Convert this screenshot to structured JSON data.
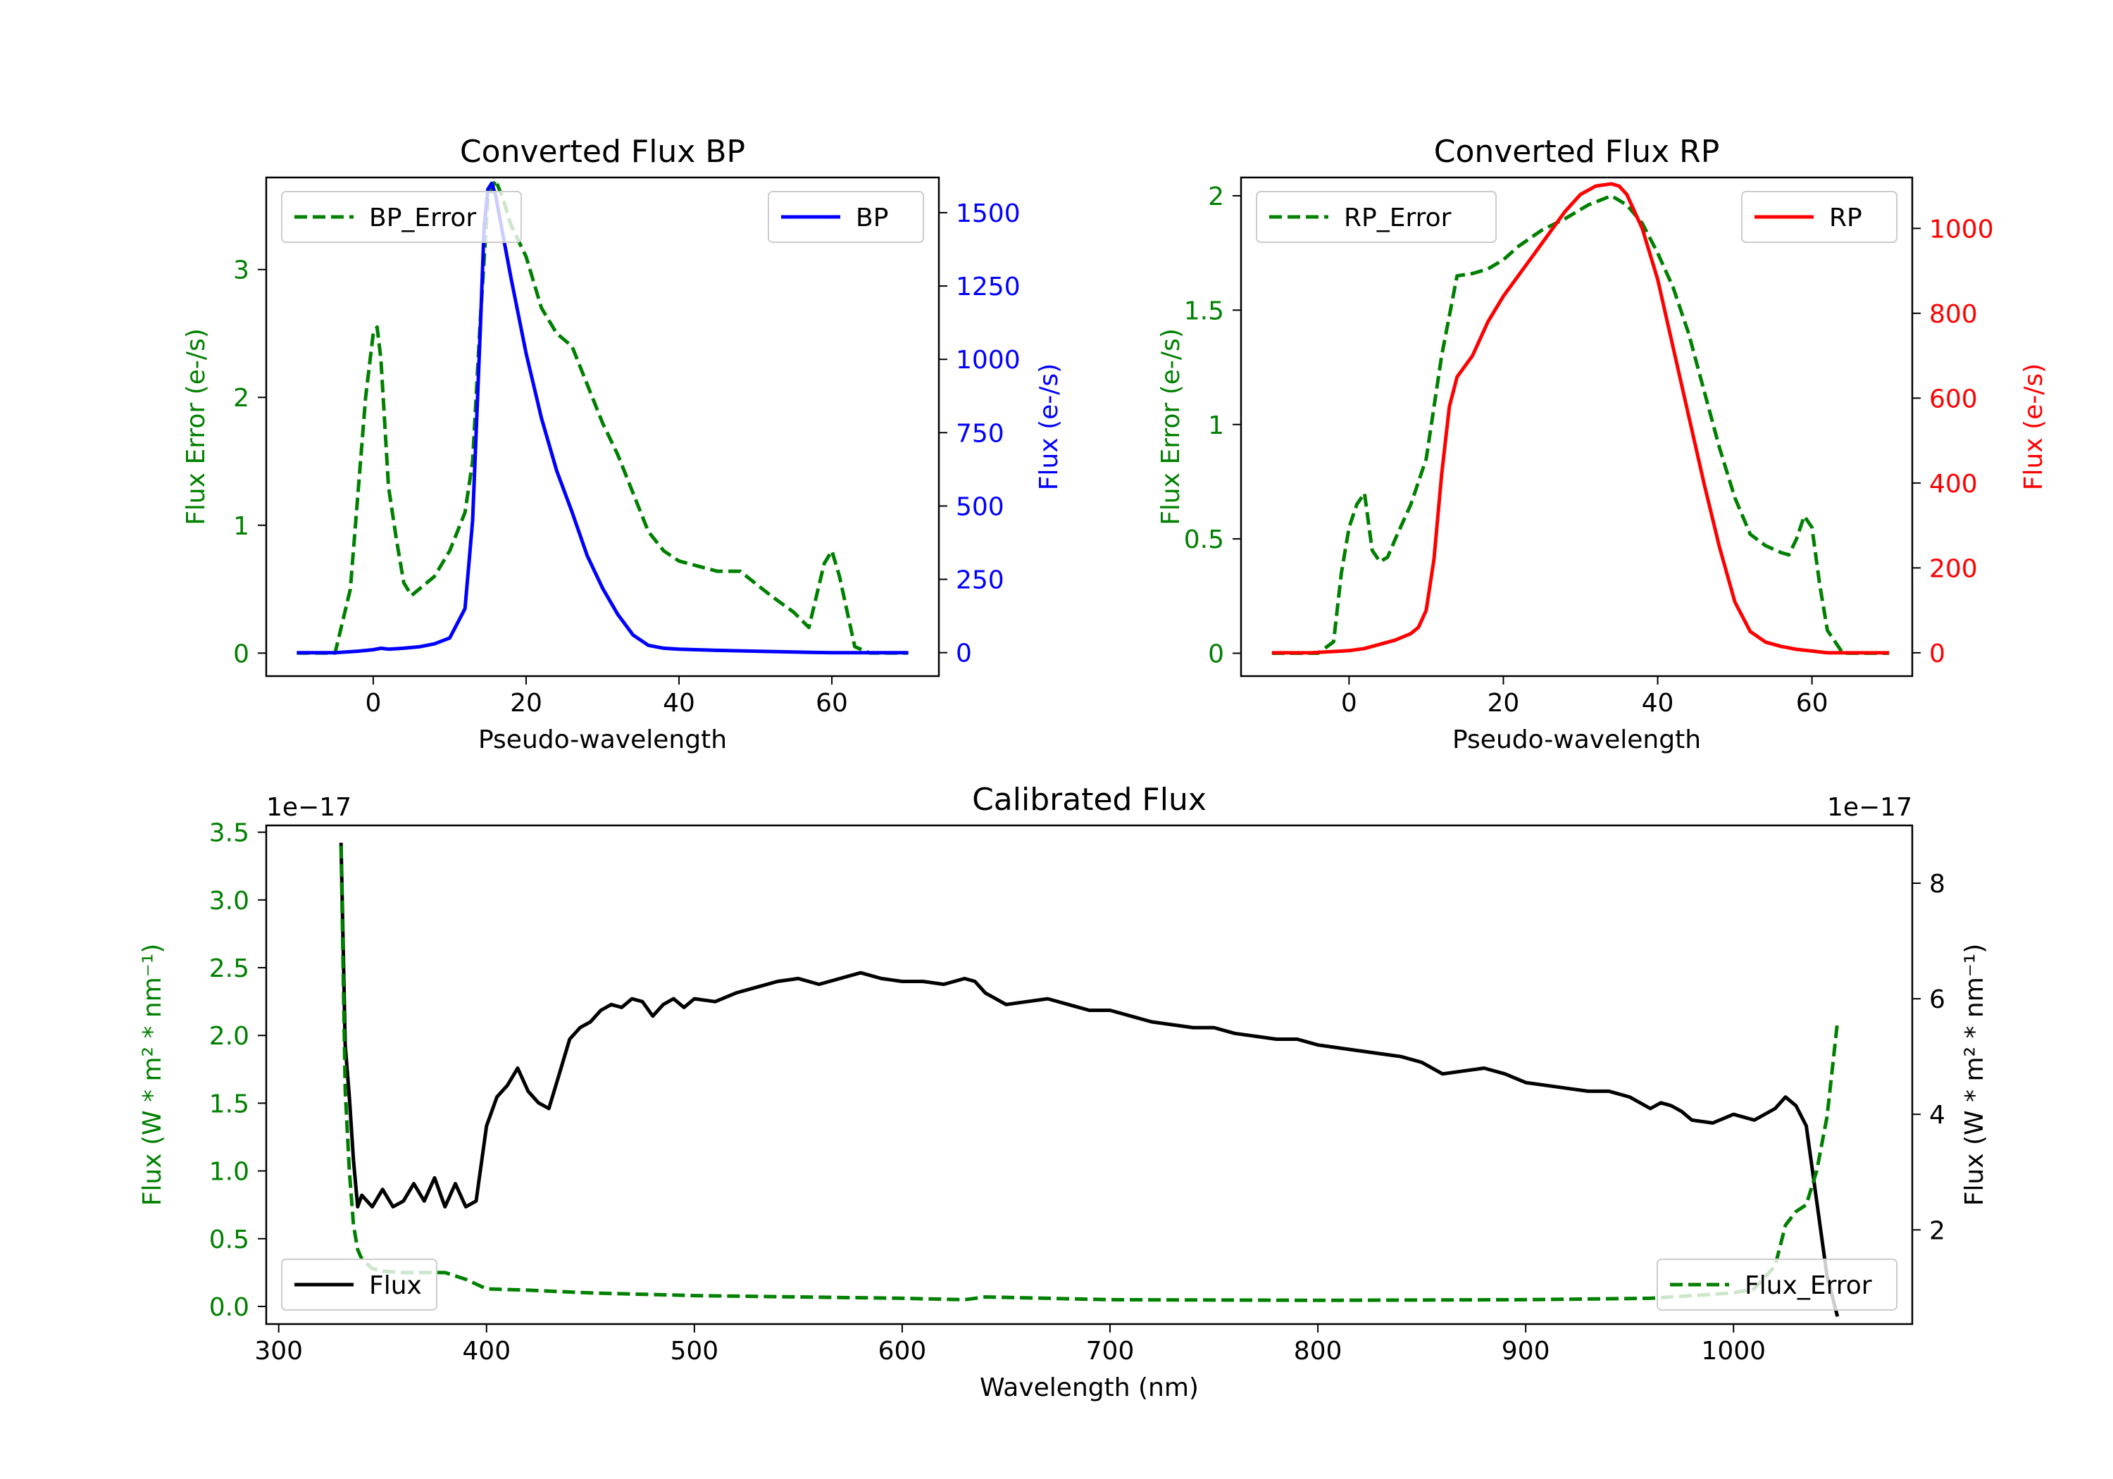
{
  "colors": {
    "green": "#008000",
    "blue": "#0000ff",
    "red": "#ff0000",
    "black": "#000000"
  },
  "chart_data": [
    {
      "type": "line",
      "title": "Converted Flux BP",
      "xlabel": "Pseudo-wavelength",
      "ylabel_left": "Flux Error (e-/s)",
      "ylabel_right": "Flux (e-/s)",
      "xlim": [
        -14,
        74
      ],
      "ylim_left": [
        -0.18,
        3.72
      ],
      "ylim_right": [
        -80,
        1620
      ],
      "x_ticks": [
        0,
        20,
        40,
        60
      ],
      "y_ticks_left": [
        0,
        1,
        2,
        3
      ],
      "y_ticks_right": [
        0,
        250,
        500,
        750,
        1000,
        1250,
        1500
      ],
      "series": [
        {
          "name": "BP_Error",
          "axis": "left",
          "color": "green",
          "dash": true,
          "legend": "BP_Error",
          "legend_pos": "upper-left",
          "x": [
            -10,
            -5,
            -3,
            -1,
            0,
            0.5,
            1,
            2,
            3,
            4,
            5,
            6,
            8,
            10,
            12,
            13,
            14,
            15,
            16,
            17,
            18,
            20,
            22,
            24,
            26,
            28,
            30,
            32,
            34,
            36,
            38,
            40,
            45,
            48,
            52,
            55,
            57,
            59,
            60,
            61,
            63,
            65,
            70
          ],
          "y": [
            0,
            0,
            0.5,
            2.0,
            2.5,
            2.55,
            2.3,
            1.3,
            0.9,
            0.55,
            0.45,
            0.5,
            0.6,
            0.8,
            1.1,
            1.5,
            2.6,
            3.55,
            3.7,
            3.55,
            3.35,
            3.1,
            2.7,
            2.5,
            2.4,
            2.1,
            1.8,
            1.55,
            1.25,
            0.95,
            0.8,
            0.72,
            0.64,
            0.64,
            0.45,
            0.32,
            0.2,
            0.7,
            0.8,
            0.6,
            0.05,
            0,
            0
          ]
        },
        {
          "name": "BP",
          "axis": "right",
          "color": "blue",
          "dash": false,
          "legend": "BP",
          "legend_pos": "upper-right",
          "x": [
            -10,
            -5,
            -2,
            0,
            1,
            2,
            4,
            6,
            8,
            10,
            12,
            13,
            14,
            14.5,
            15,
            15.5,
            16,
            17,
            18,
            20,
            22,
            24,
            26,
            28,
            30,
            32,
            34,
            36,
            38,
            40,
            45,
            50,
            55,
            60,
            65,
            70
          ],
          "y": [
            0,
            0,
            5,
            10,
            15,
            12,
            15,
            20,
            30,
            50,
            150,
            450,
            1100,
            1450,
            1580,
            1600,
            1560,
            1420,
            1280,
            1020,
            800,
            620,
            480,
            330,
            220,
            130,
            60,
            25,
            15,
            12,
            8,
            5,
            2,
            0,
            0,
            0
          ]
        }
      ]
    },
    {
      "type": "line",
      "title": "Converted Flux RP",
      "xlabel": "Pseudo-wavelength",
      "ylabel_left": "Flux Error (e-/s)",
      "ylabel_right": "Flux (e-/s)",
      "xlim": [
        -14,
        73
      ],
      "ylim_left": [
        -0.1,
        2.08
      ],
      "ylim_right": [
        -55,
        1120
      ],
      "x_ticks": [
        0,
        20,
        40,
        60
      ],
      "y_ticks_left": [
        0.0,
        0.5,
        1.0,
        1.5,
        2.0
      ],
      "y_ticks_right": [
        0,
        200,
        400,
        600,
        800,
        1000
      ],
      "series": [
        {
          "name": "RP_Error",
          "axis": "left",
          "color": "green",
          "dash": true,
          "legend": "RP_Error",
          "legend_pos": "upper-left",
          "x": [
            -10,
            -4,
            -2,
            -1,
            0,
            1,
            2,
            3,
            4,
            5,
            6,
            8,
            10,
            12,
            14,
            16,
            18,
            20,
            22,
            25,
            28,
            31,
            34,
            36,
            38,
            40,
            42,
            44,
            46,
            48,
            50,
            52,
            54,
            56,
            57,
            58,
            59,
            60,
            61,
            62,
            64,
            70
          ],
          "y": [
            0,
            0,
            0.05,
            0.35,
            0.55,
            0.65,
            0.7,
            0.45,
            0.4,
            0.42,
            0.5,
            0.65,
            0.85,
            1.3,
            1.65,
            1.66,
            1.68,
            1.72,
            1.78,
            1.85,
            1.9,
            1.96,
            2.0,
            1.96,
            1.88,
            1.75,
            1.6,
            1.4,
            1.15,
            0.9,
            0.68,
            0.52,
            0.47,
            0.44,
            0.43,
            0.5,
            0.6,
            0.55,
            0.3,
            0.1,
            0,
            0
          ]
        },
        {
          "name": "RP",
          "axis": "right",
          "color": "red",
          "dash": false,
          "legend": "RP",
          "legend_pos": "upper-right",
          "x": [
            -10,
            -5,
            0,
            2,
            4,
            6,
            8,
            9,
            10,
            11,
            12,
            13,
            14,
            16,
            18,
            20,
            22,
            24,
            26,
            28,
            30,
            32,
            34,
            35,
            36,
            38,
            40,
            42,
            44,
            46,
            48,
            50,
            52,
            54,
            56,
            58,
            60,
            62,
            65,
            70
          ],
          "y": [
            0,
            0,
            5,
            10,
            20,
            30,
            45,
            60,
            100,
            220,
            420,
            580,
            650,
            700,
            780,
            840,
            890,
            940,
            990,
            1040,
            1080,
            1100,
            1105,
            1100,
            1080,
            1000,
            880,
            720,
            560,
            400,
            250,
            120,
            50,
            25,
            15,
            8,
            4,
            0,
            0,
            0
          ]
        }
      ]
    },
    {
      "type": "line",
      "title": "Calibrated Flux",
      "xlabel": "Wavelength (nm)",
      "ylabel_left": "Flux (W * m² * nm⁻¹)",
      "ylabel_right": "Flux (W * m² * nm⁻¹)",
      "offset_left": "1e−17",
      "offset_right": "1e−17",
      "xlim": [
        294,
        1086
      ],
      "ylim_left": [
        -0.13,
        3.55
      ],
      "ylim_right": [
        0.37,
        9.0
      ],
      "x_ticks": [
        300,
        400,
        500,
        600,
        700,
        800,
        900,
        1000
      ],
      "y_ticks_left": [
        "0.0",
        "0.5",
        "1.0",
        "1.5",
        "2.0",
        "2.5",
        "3.0",
        "3.5"
      ],
      "y_ticks_right": [
        2,
        4,
        6,
        8
      ],
      "series": [
        {
          "name": "Flux",
          "axis": "right",
          "color": "black",
          "dash": false,
          "legend": "Flux",
          "legend_pos": "lower-left",
          "x": [
            330,
            332,
            334,
            336,
            338,
            340,
            345,
            350,
            355,
            360,
            365,
            370,
            375,
            380,
            385,
            390,
            395,
            400,
            405,
            410,
            415,
            420,
            425,
            430,
            435,
            440,
            445,
            450,
            455,
            460,
            465,
            470,
            475,
            480,
            485,
            490,
            495,
            500,
            510,
            520,
            530,
            540,
            550,
            560,
            570,
            580,
            590,
            600,
            610,
            620,
            630,
            635,
            640,
            645,
            650,
            660,
            670,
            680,
            690,
            700,
            710,
            720,
            730,
            740,
            750,
            760,
            770,
            780,
            790,
            800,
            810,
            820,
            830,
            840,
            850,
            860,
            870,
            880,
            890,
            900,
            910,
            920,
            930,
            940,
            950,
            960,
            965,
            970,
            975,
            980,
            990,
            1000,
            1010,
            1020,
            1025,
            1030,
            1035,
            1040,
            1045,
            1050
          ],
          "y": [
            8.7,
            5.2,
            4.3,
            3.2,
            2.4,
            2.6,
            2.4,
            2.7,
            2.4,
            2.5,
            2.8,
            2.5,
            2.9,
            2.4,
            2.8,
            2.4,
            2.5,
            3.8,
            4.3,
            4.5,
            4.8,
            4.4,
            4.2,
            4.1,
            4.7,
            5.3,
            5.5,
            5.6,
            5.8,
            5.9,
            5.85,
            6.0,
            5.95,
            5.7,
            5.9,
            6.0,
            5.85,
            6.0,
            5.95,
            6.1,
            6.2,
            6.3,
            6.35,
            6.25,
            6.35,
            6.45,
            6.35,
            6.3,
            6.3,
            6.25,
            6.35,
            6.3,
            6.1,
            6.0,
            5.9,
            5.95,
            6.0,
            5.9,
            5.8,
            5.8,
            5.7,
            5.6,
            5.55,
            5.5,
            5.5,
            5.4,
            5.35,
            5.3,
            5.3,
            5.2,
            5.15,
            5.1,
            5.05,
            5.0,
            4.9,
            4.7,
            4.75,
            4.8,
            4.7,
            4.55,
            4.5,
            4.45,
            4.4,
            4.4,
            4.3,
            4.1,
            4.2,
            4.15,
            4.05,
            3.9,
            3.85,
            4.0,
            3.9,
            4.1,
            4.3,
            4.15,
            3.8,
            2.5,
            1.2,
            0.5
          ]
        },
        {
          "name": "Flux_Error",
          "axis": "left",
          "color": "green",
          "dash": true,
          "legend": "Flux_Error",
          "legend_pos": "lower-right",
          "x": [
            330,
            332,
            334,
            336,
            338,
            340,
            345,
            350,
            360,
            370,
            380,
            390,
            400,
            420,
            450,
            500,
            550,
            600,
            630,
            640,
            700,
            800,
            900,
            960,
            1000,
            1010,
            1020,
            1025,
            1030,
            1035,
            1040,
            1045,
            1050
          ],
          "y": [
            3.4,
            1.6,
            1.0,
            0.6,
            0.42,
            0.35,
            0.28,
            0.26,
            0.25,
            0.25,
            0.25,
            0.2,
            0.13,
            0.12,
            0.1,
            0.08,
            0.07,
            0.06,
            0.05,
            0.07,
            0.05,
            0.045,
            0.05,
            0.06,
            0.1,
            0.13,
            0.3,
            0.6,
            0.7,
            0.75,
            1.0,
            1.4,
            2.1
          ]
        }
      ]
    }
  ]
}
